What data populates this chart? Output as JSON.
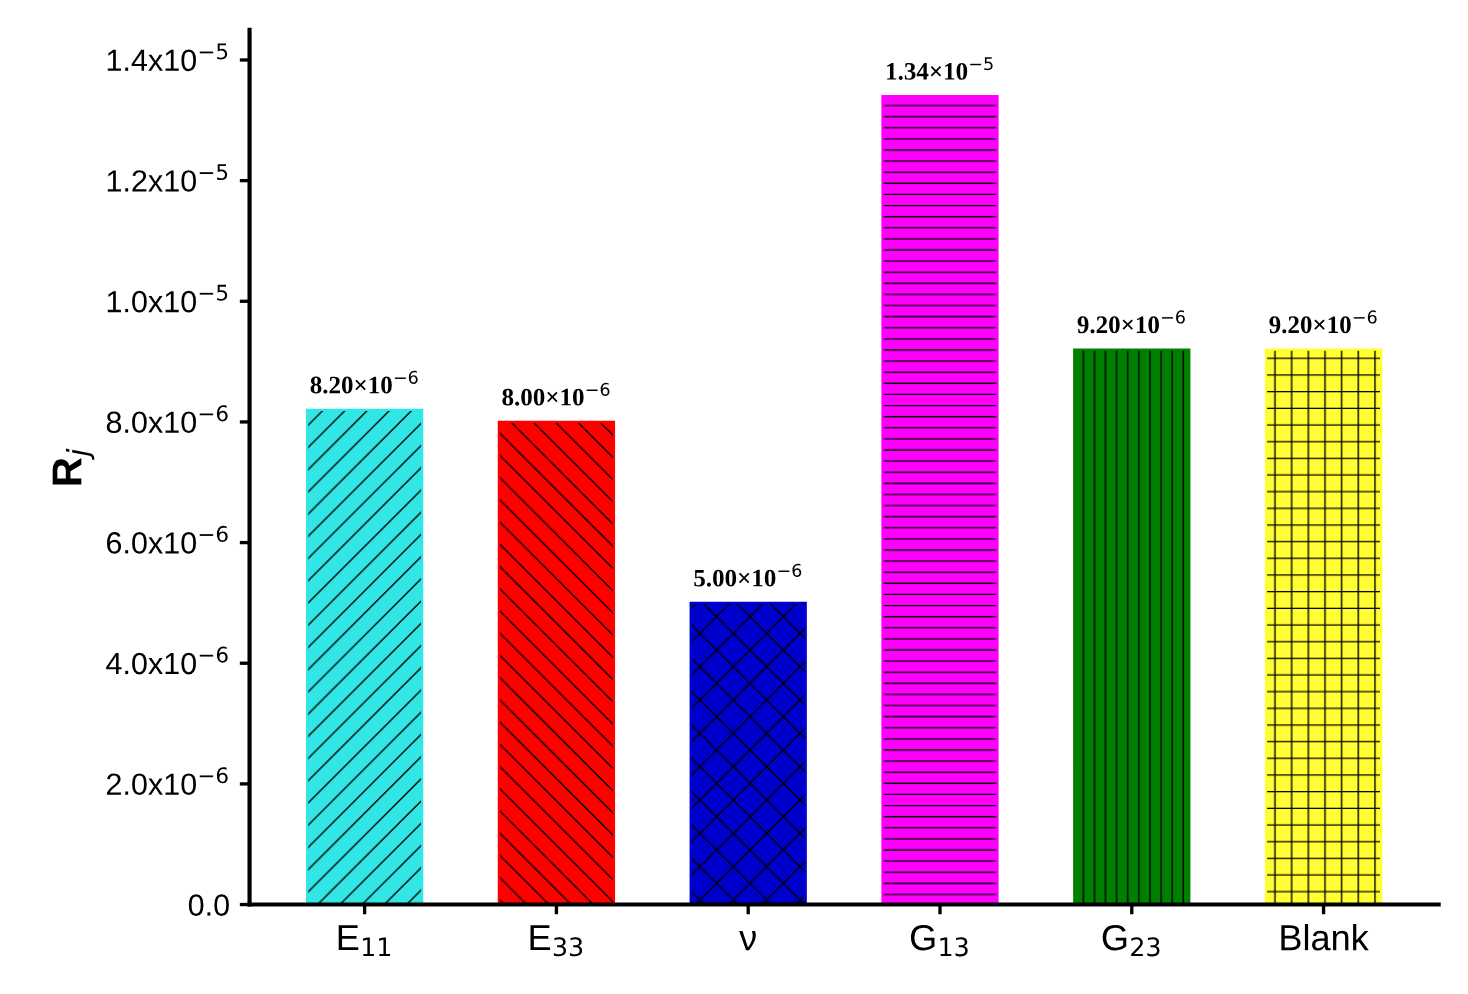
{
  "chart_data": {
    "type": "bar",
    "ylabel": "R$_{j}$",
    "categories": [
      "E$_{11}$",
      "E$_{33}$",
      "ν",
      "G$_{13}$",
      "G$_{23}$",
      "Blank"
    ],
    "values": [
      8.2e-06,
      8e-06,
      5e-06,
      1.34e-05,
      9.2e-06,
      9.2e-06
    ],
    "colors": [
      "#33e6e6",
      "#ff0000",
      "#0000cc",
      "#ff00ff",
      "#008000",
      "#ffff33"
    ],
    "value_labels": [
      "8.20×10$^{−6}$",
      "8.00×10$^{−6}$",
      "5.00×10$^{−6}$",
      "1.34×10$^{−5}$",
      "9.20×10$^{−6}$",
      "9.20×10$^{−6}$"
    ],
    "ylim": [
      0,
      1.45e-05
    ],
    "yticks": [
      {
        "value": 0,
        "label": "0.0"
      },
      {
        "value": 2e-06,
        "label": "2.0x10$^{−6}$"
      },
      {
        "value": 4e-06,
        "label": "4.0x10$^{−6}$"
      },
      {
        "value": 6e-06,
        "label": "6.0x10$^{−6}$"
      },
      {
        "value": 8e-06,
        "label": "8.0x10$^{−6}$"
      },
      {
        "value": 1e-05,
        "label": "1.0x10$^{−5}$"
      },
      {
        "value": 1.2e-05,
        "label": "1.2x10$^{−5}$"
      },
      {
        "value": 1.4e-05,
        "label": "1.4x10$^{−5}$"
      }
    ],
    "grid": false,
    "legend": false
  }
}
